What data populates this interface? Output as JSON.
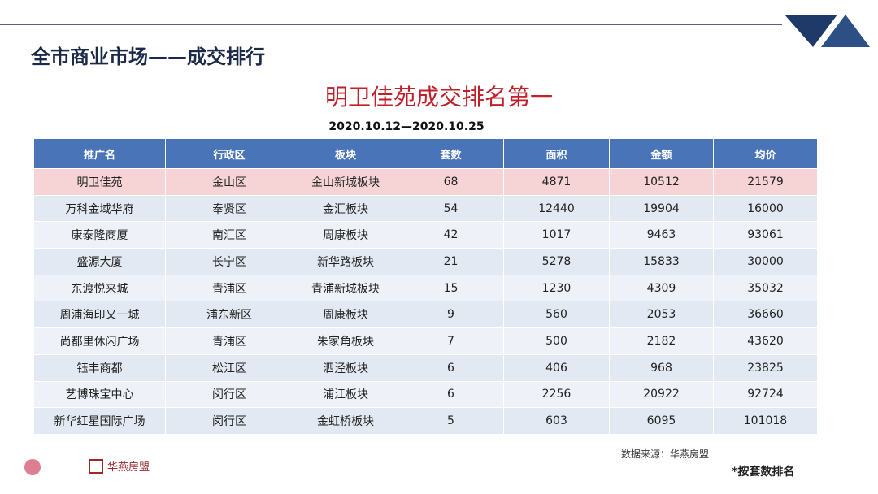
{
  "header": {
    "title": "全市商业市场——成交排行"
  },
  "subtitle": "明卫佳苑成交排名第一",
  "date_range": "2020.10.12—2020.10.25",
  "table": {
    "columns": [
      "推广名",
      "行政区",
      "板块",
      "套数",
      "面积",
      "金额",
      "均价"
    ],
    "rows": [
      [
        "明卫佳苑",
        "金山区",
        "金山新城板块",
        68,
        4871,
        10512,
        21579
      ],
      [
        "万科金域华府",
        "奉贤区",
        "金汇板块",
        54,
        12440,
        19904,
        16000
      ],
      [
        "康泰隆商厦",
        "南汇区",
        "周康板块",
        42,
        1017,
        9463,
        93061
      ],
      [
        "盛源大厦",
        "长宁区",
        "新华路板块",
        21,
        5278,
        15833,
        30000
      ],
      [
        "东渡悦来城",
        "青浦区",
        "青浦新城板块",
        15,
        1230,
        4309,
        35032
      ],
      [
        "周浦海印又一城",
        "浦东新区",
        "周康板块",
        9,
        560,
        2053,
        36660
      ],
      [
        "尚都里休闲广场",
        "青浦区",
        "朱家角板块",
        7,
        500,
        2182,
        43620
      ],
      [
        "钰丰商都",
        "松江区",
        "泗泾板块",
        6,
        406,
        968,
        23825
      ],
      [
        "艺博珠宝中心",
        "闵行区",
        "浦江板块",
        6,
        2256,
        20922,
        92724
      ],
      [
        "新华红星国际广场",
        "闵行区",
        "金虹桥板块",
        5,
        603,
        6095,
        101018
      ]
    ]
  },
  "footer": {
    "source": "数据来源：华燕房盟",
    "note": "*按套数排名",
    "logo": "华燕房盟"
  }
}
